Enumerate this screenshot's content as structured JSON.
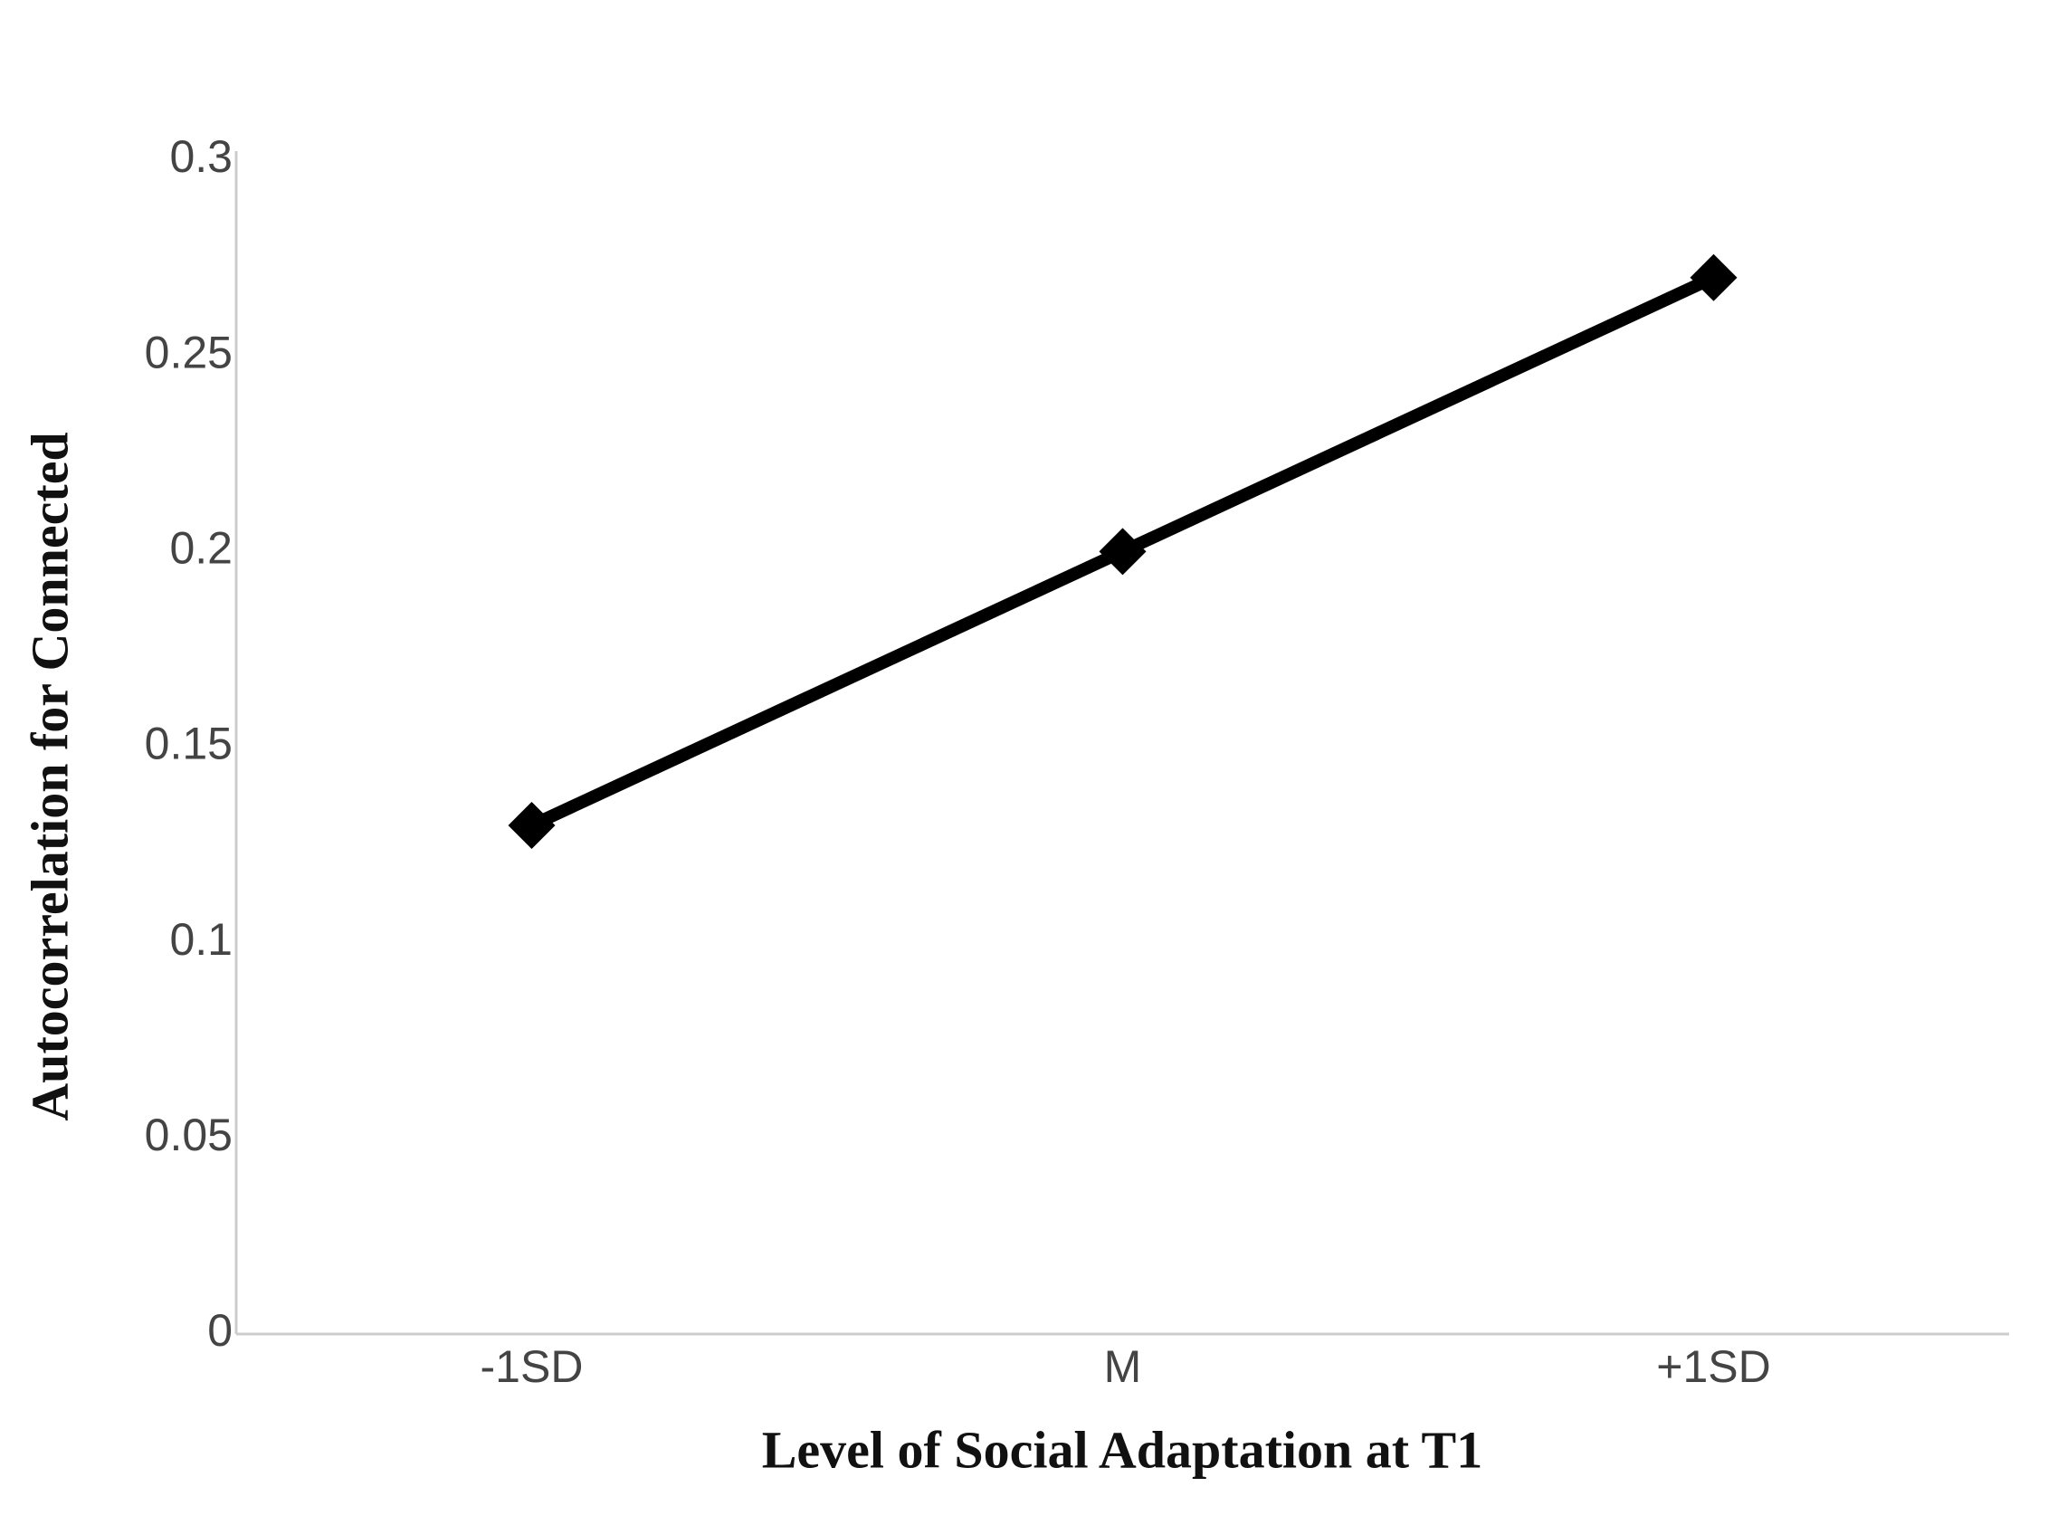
{
  "chart_data": {
    "type": "line",
    "x_label": "Level of Social Adaptation at T1",
    "y_label": "Autocorrelation for Connected",
    "categories": [
      "-1SD",
      "M",
      "+1SD"
    ],
    "values": [
      0.13,
      0.2,
      0.27
    ],
    "color": "#000000",
    "ylim": [
      0,
      0.3
    ],
    "yticks": [
      0,
      0.05,
      0.1,
      0.15,
      0.2,
      0.25,
      0.3
    ],
    "grid": false
  }
}
